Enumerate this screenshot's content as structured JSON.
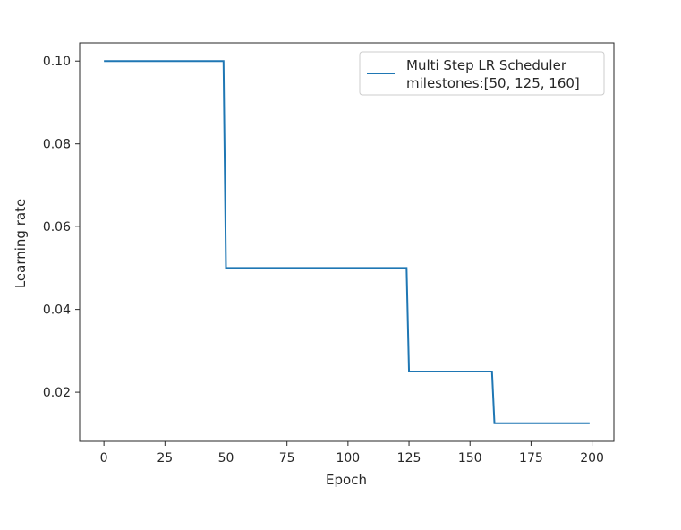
{
  "chart_data": {
    "type": "line",
    "title": "",
    "xlabel": "Epoch",
    "ylabel": "Learning rate",
    "xlim": [
      -9.95,
      208.95
    ],
    "ylim": [
      0.008125,
      0.104375
    ],
    "xticks": [
      0,
      25,
      50,
      75,
      100,
      125,
      150,
      175,
      200
    ],
    "yticks": [
      0.02,
      0.04,
      0.06,
      0.08,
      0.1
    ],
    "ytick_labels": [
      "0.02",
      "0.04",
      "0.06",
      "0.08",
      "0.10"
    ],
    "grid": false,
    "legend_position": "top-right",
    "series": [
      {
        "name": "Multi Step LR Scheduler\nmilestones:[50, 125, 160]",
        "legend_lines": [
          "Multi Step LR Scheduler",
          "milestones:[50, 125, 160]"
        ],
        "color": "#1f77b4",
        "step": true,
        "x": [
          0,
          49,
          50,
          124,
          125,
          159,
          160,
          199
        ],
        "y": [
          0.1,
          0.1,
          0.05,
          0.05,
          0.025,
          0.025,
          0.0125,
          0.0125
        ]
      }
    ]
  }
}
